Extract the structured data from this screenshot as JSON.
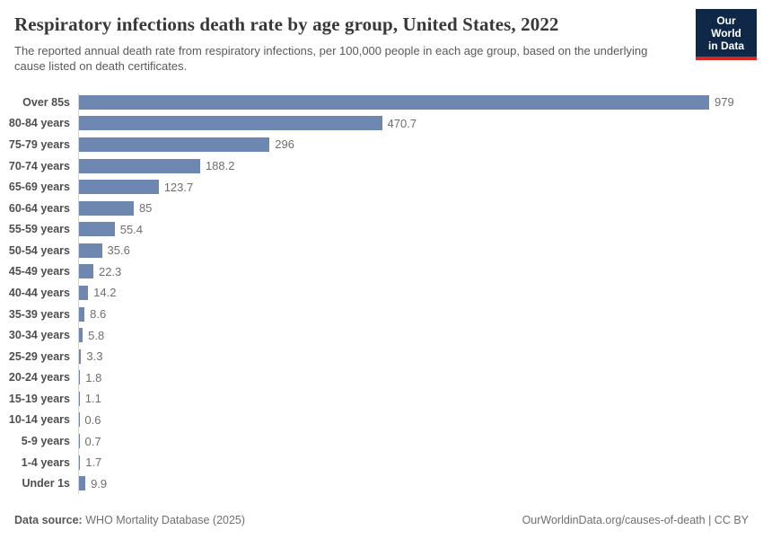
{
  "header": {
    "logo": {
      "line1": "Our World",
      "line2": "in Data"
    }
  },
  "chart_data": {
    "type": "bar",
    "orientation": "horizontal",
    "title": "Respiratory infections death rate by age group, United States, 2022",
    "subtitle": "The reported annual death rate from respiratory infections, per 100,000 people in each age group, based on the underlying cause listed on death certificates.",
    "categories": [
      "Over 85s",
      "80-84 years",
      "75-79 years",
      "70-74 years",
      "65-69 years",
      "60-64 years",
      "55-59 years",
      "50-54 years",
      "45-49 years",
      "40-44 years",
      "35-39 years",
      "30-34 years",
      "25-29 years",
      "20-24 years",
      "15-19 years",
      "10-14 years",
      "5-9 years",
      "1-4 years",
      "Under 1s"
    ],
    "values": [
      979,
      470.7,
      296,
      188.2,
      123.7,
      85,
      55.4,
      35.6,
      22.3,
      14.2,
      8.6,
      5.8,
      3.3,
      1.8,
      1.1,
      0.6,
      0.7,
      1.7,
      9.9
    ],
    "value_labels": [
      "979",
      "470.7",
      "296",
      "188.2",
      "123.7",
      "85",
      "55.4",
      "35.6",
      "22.3",
      "14.2",
      "8.6",
      "5.8",
      "3.3",
      "1.8",
      "1.1",
      "0.6",
      "0.7",
      "1.7",
      "9.9"
    ],
    "xlim": [
      0,
      979
    ],
    "bar_color": "#6d87b0",
    "grid": false,
    "legend": "none",
    "units": "deaths per 100,000 people"
  },
  "footer": {
    "source_label": "Data source:",
    "source_value": " WHO Mortality Database (2025)",
    "right_text": "OurWorldinData.org/causes-of-death | CC BY"
  },
  "colors": {
    "bar": "#6d87b0",
    "title": "#383838",
    "subtitle": "#595959",
    "axis": "#d5d5d5",
    "logo_bg": "#102848",
    "logo_accent": "#d7291f"
  }
}
